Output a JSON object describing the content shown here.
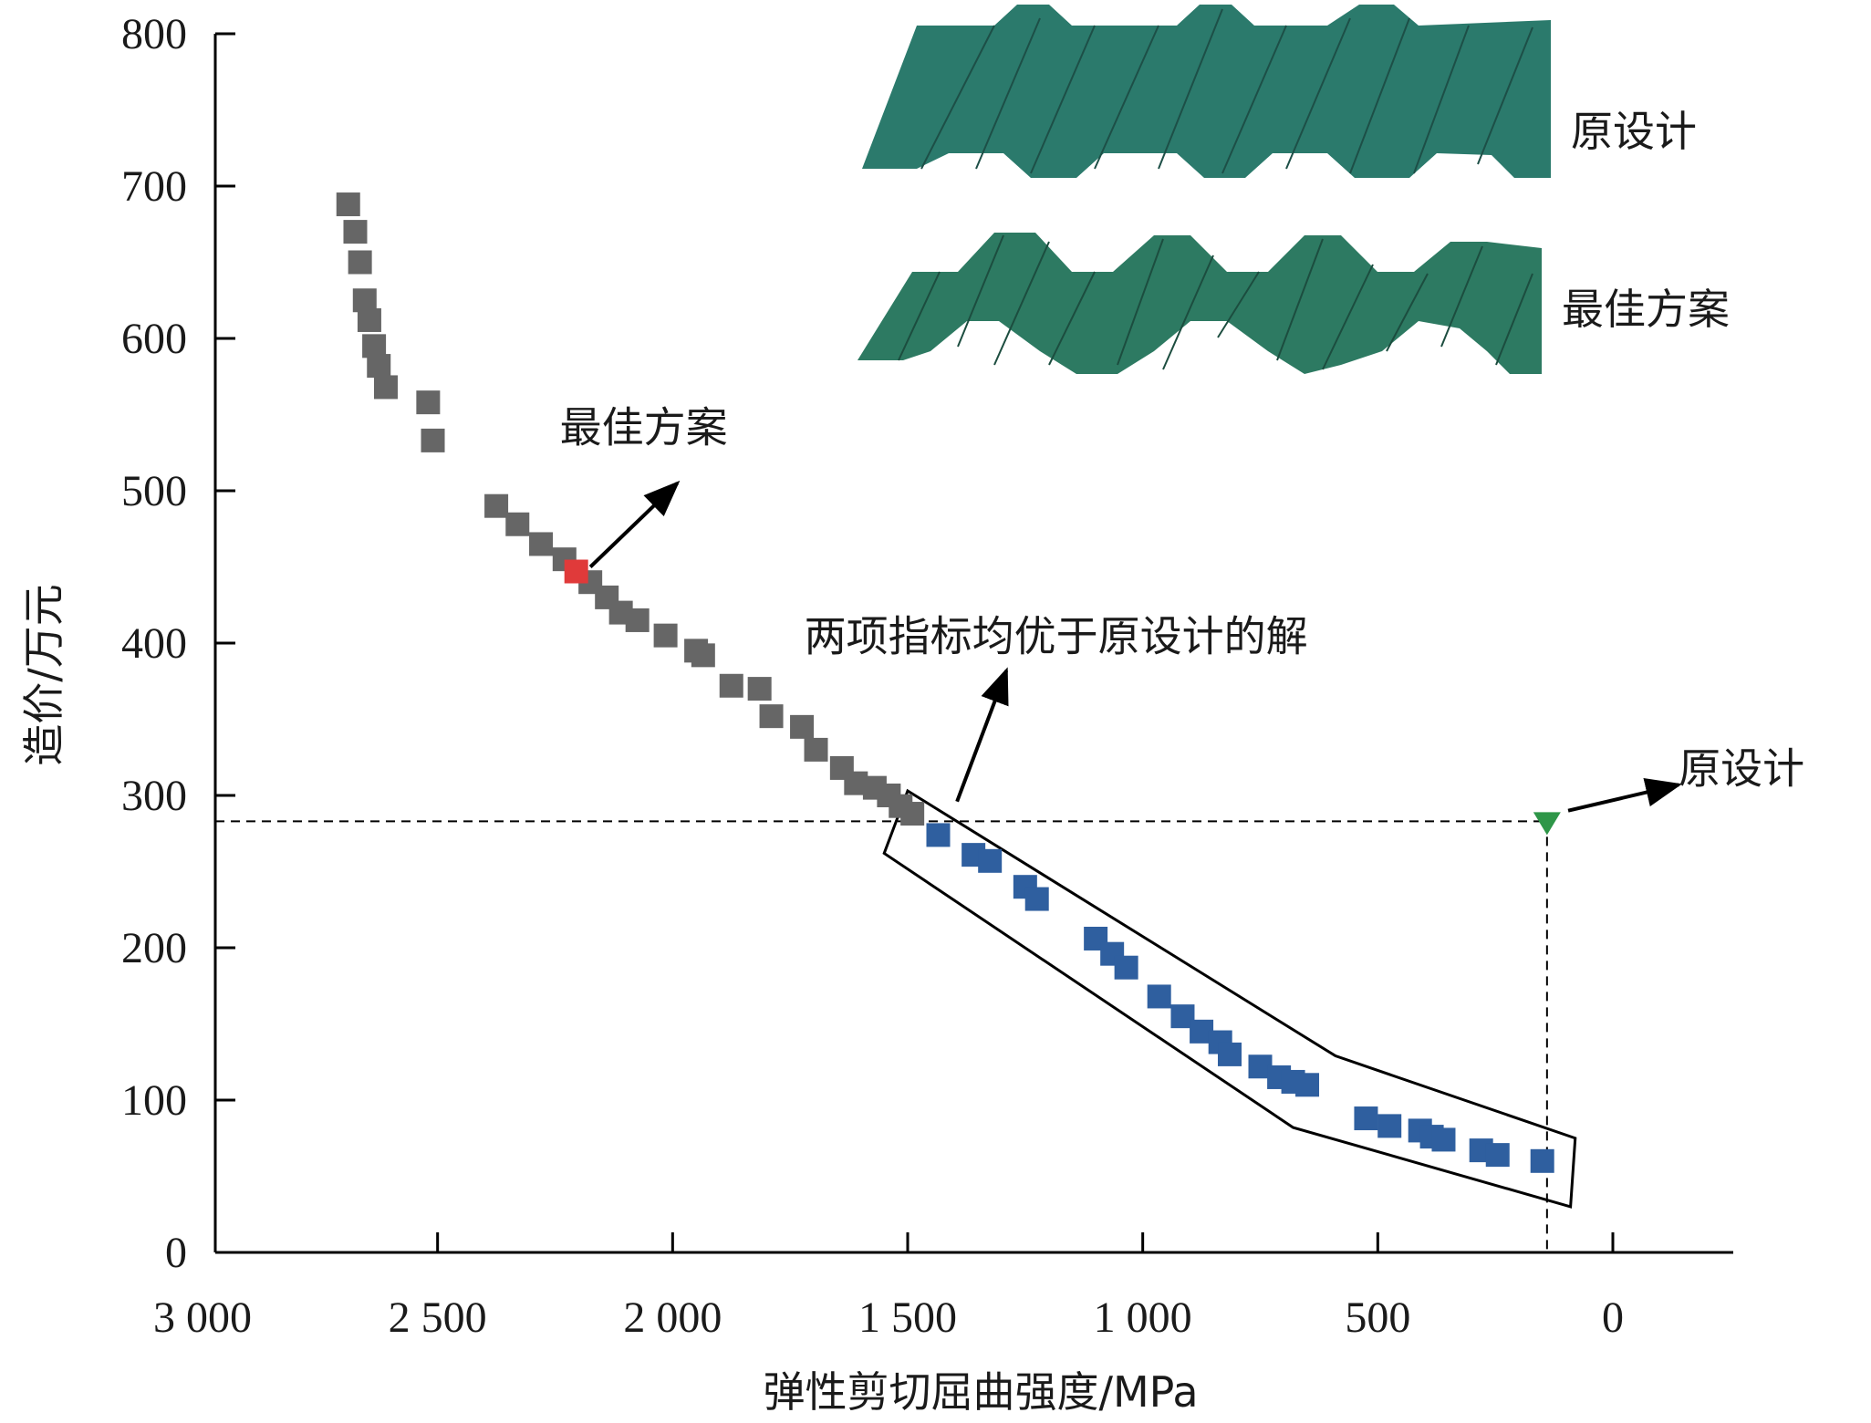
{
  "chart_data": {
    "type": "scatter",
    "xlabel": "弹性剪切屈曲强度/MPa",
    "ylabel": "造价/万元",
    "xlim": [
      3000,
      -250
    ],
    "ylim": [
      0,
      800
    ],
    "x_reversed": true,
    "x_ticks": [
      {
        "value": 3000,
        "label": "3 000"
      },
      {
        "value": 2500,
        "label": "2 500"
      },
      {
        "value": 2000,
        "label": "2 000"
      },
      {
        "value": 1500,
        "label": "1 500"
      },
      {
        "value": 1000,
        "label": "1 000"
      },
      {
        "value": 500,
        "label": "500"
      },
      {
        "value": 0,
        "label": "0"
      }
    ],
    "y_ticks": [
      {
        "value": 0,
        "label": "0"
      },
      {
        "value": 100,
        "label": "100"
      },
      {
        "value": 200,
        "label": "200"
      },
      {
        "value": 300,
        "label": "300"
      },
      {
        "value": 400,
        "label": "400"
      },
      {
        "value": 500,
        "label": "500"
      },
      {
        "value": 600,
        "label": "600"
      },
      {
        "value": 700,
        "label": "700"
      },
      {
        "value": 800,
        "label": "800"
      }
    ],
    "grid": false,
    "series": [
      {
        "role": "other-solutions",
        "color": "#666666",
        "marker": "square",
        "points": [
          [
            2690,
            688
          ],
          [
            2675,
            670
          ],
          [
            2665,
            650
          ],
          [
            2655,
            625
          ],
          [
            2645,
            612
          ],
          [
            2635,
            595
          ],
          [
            2625,
            582
          ],
          [
            2610,
            568
          ],
          [
            2520,
            558
          ],
          [
            2510,
            533
          ],
          [
            2375,
            490
          ],
          [
            2330,
            478
          ],
          [
            2280,
            465
          ],
          [
            2230,
            455
          ],
          [
            2175,
            440
          ],
          [
            2140,
            430
          ],
          [
            2110,
            420
          ],
          [
            2075,
            415
          ],
          [
            2015,
            405
          ],
          [
            1950,
            395
          ],
          [
            1935,
            392
          ],
          [
            1875,
            372
          ],
          [
            1815,
            370
          ],
          [
            1790,
            352
          ],
          [
            1725,
            345
          ],
          [
            1695,
            330
          ],
          [
            1640,
            318
          ],
          [
            1610,
            308
          ],
          [
            1570,
            305
          ],
          [
            1540,
            300
          ],
          [
            1515,
            293
          ],
          [
            1490,
            288
          ]
        ]
      },
      {
        "role": "best-solution",
        "color": "#e03a3a",
        "marker": "square",
        "points": [
          [
            2205,
            447
          ]
        ]
      },
      {
        "role": "better-than-original",
        "color": "#2f5f9f",
        "marker": "square",
        "points": [
          [
            1435,
            274
          ],
          [
            1360,
            261
          ],
          [
            1325,
            257
          ],
          [
            1250,
            240
          ],
          [
            1225,
            232
          ],
          [
            1100,
            206
          ],
          [
            1065,
            196
          ],
          [
            1035,
            187
          ],
          [
            965,
            168
          ],
          [
            915,
            155
          ],
          [
            875,
            145
          ],
          [
            835,
            138
          ],
          [
            815,
            130
          ],
          [
            750,
            122
          ],
          [
            710,
            115
          ],
          [
            680,
            112
          ],
          [
            650,
            110
          ],
          [
            525,
            88
          ],
          [
            475,
            83
          ],
          [
            410,
            80
          ],
          [
            385,
            76
          ],
          [
            360,
            74
          ],
          [
            280,
            67
          ],
          [
            245,
            64
          ],
          [
            150,
            60
          ]
        ]
      },
      {
        "role": "original-design",
        "color": "#2e9648",
        "marker": "triangle-down",
        "points": [
          [
            140,
            283
          ]
        ]
      }
    ],
    "reference_lines": {
      "x": 140,
      "y": 283,
      "style": "dashed"
    },
    "enclosure_polygon": [
      [
        1500,
        303
      ],
      [
        590,
        129
      ],
      [
        80,
        75
      ],
      [
        90,
        30
      ],
      [
        680,
        82
      ],
      [
        1550,
        262
      ]
    ],
    "annotations": [
      {
        "key": "best",
        "text": "最佳方案",
        "text_at": [
          2240,
          532
        ],
        "arrow_from": [
          2175,
          450
        ],
        "arrow_to": [
          1990,
          505
        ]
      },
      {
        "key": "better",
        "text": "两项指标均优于原设计的解",
        "text_at": [
          1720,
          395
        ],
        "arrow_from": [
          1395,
          296
        ],
        "arrow_to": [
          1290,
          382
        ]
      },
      {
        "key": "original",
        "text": "原设计",
        "text_at": [
          -140,
          308
        ],
        "arrow_from": [
          95,
          290
        ],
        "arrow_to": [
          -140,
          307
        ]
      }
    ]
  },
  "inset": {
    "original_label": "原设计",
    "best_label": "最佳方案",
    "original_color": "#2b7a6c",
    "best_color": "#2d7a62"
  }
}
